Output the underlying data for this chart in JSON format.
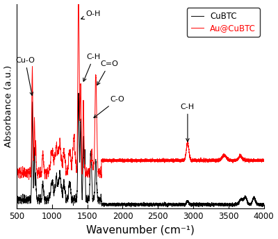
{
  "xlabel": "Wavenumber (cm⁻¹)",
  "ylabel": "Absorbance (a.u.)",
  "xlim": [
    500,
    4000
  ],
  "xticks": [
    500,
    1000,
    1500,
    2000,
    2500,
    3000,
    3500,
    4000
  ],
  "xticklabels": [
    "500",
    "1000",
    "1500",
    "2000",
    "2500",
    "3000",
    "3500",
    "4000"
  ],
  "legend_labels": [
    "CuBTC",
    "Au@CuBTC"
  ],
  "legend_colors": [
    "black",
    "red"
  ],
  "figsize": [
    4.0,
    3.44
  ],
  "dpi": 100
}
